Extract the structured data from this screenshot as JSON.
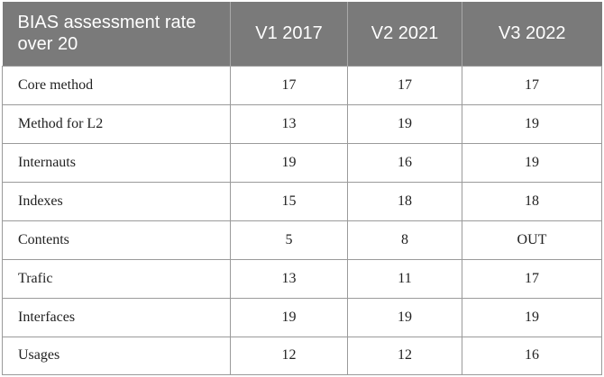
{
  "table": {
    "headers": [
      "BIAS assessment rate over 20",
      "V1 2017",
      "V2 2021",
      "V3 2022"
    ],
    "rows": [
      [
        "Core method",
        "17",
        "17",
        "17"
      ],
      [
        "Method for L2",
        "13",
        "19",
        "19"
      ],
      [
        "Internauts",
        "19",
        "16",
        "19"
      ],
      [
        "Indexes",
        "15",
        "18",
        "18"
      ],
      [
        "Contents",
        "5",
        "8",
        "OUT"
      ],
      [
        "Trafic",
        "13",
        "11",
        "17"
      ],
      [
        "Interfaces",
        "19",
        "19",
        "19"
      ],
      [
        "Usages",
        "12",
        "12",
        "16"
      ]
    ]
  },
  "colors": {
    "header_background": "#7a7a7a",
    "header_text": "#ffffff",
    "border": "#9a9a9a"
  }
}
